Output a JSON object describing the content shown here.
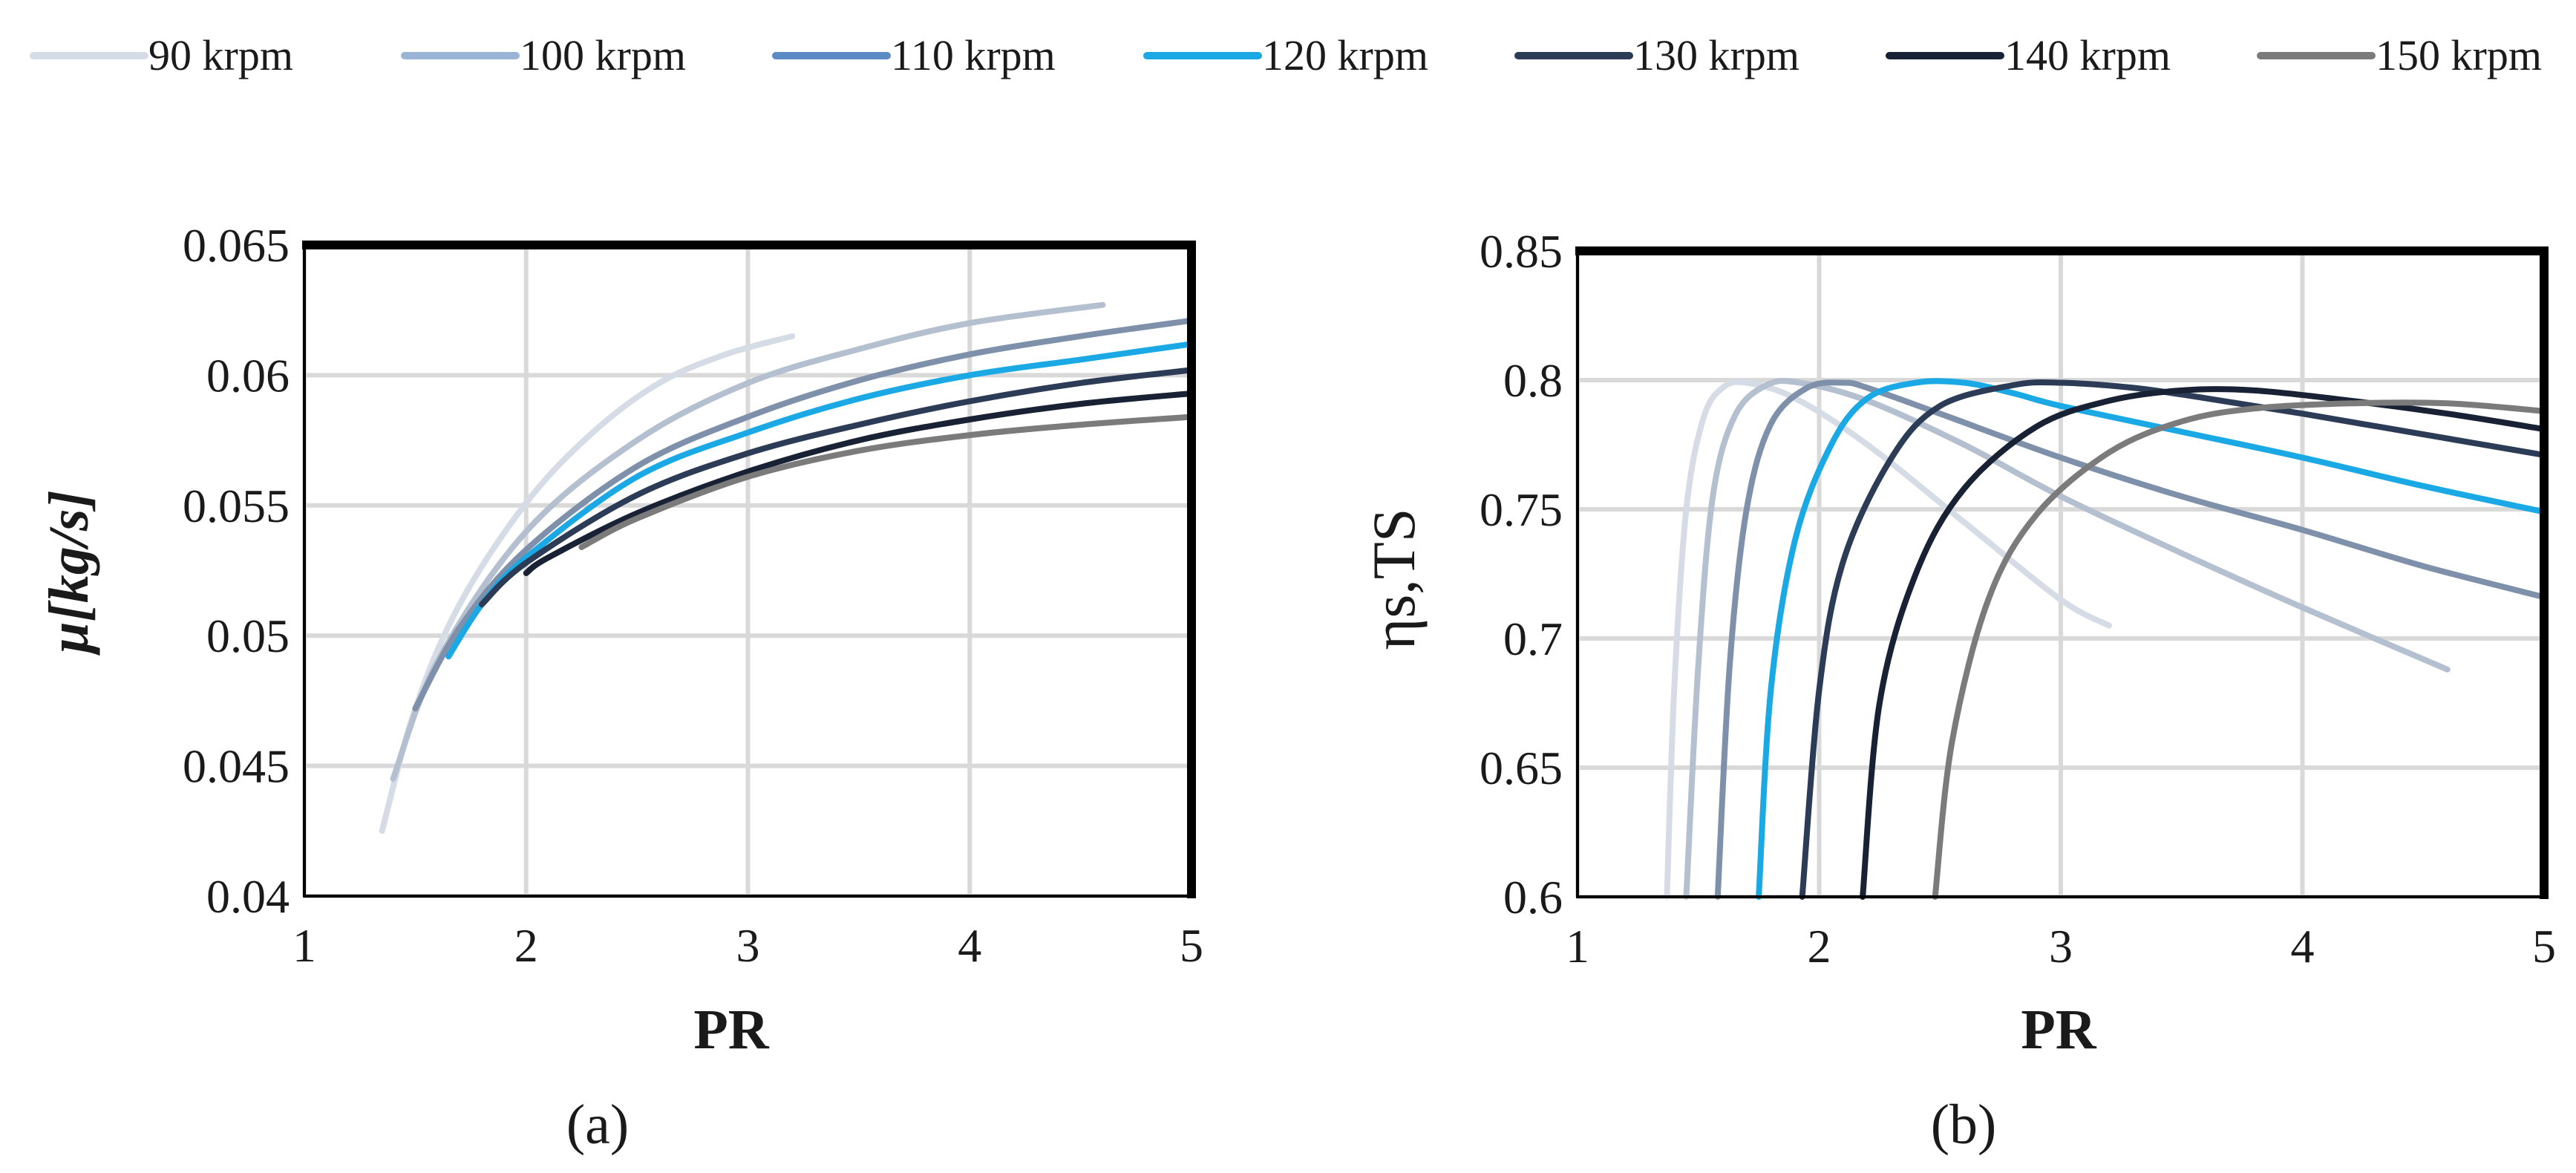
{
  "legend": [
    {
      "label": "90 krpm",
      "color": "#d5dce6"
    },
    {
      "label": "100 krpm",
      "color": "#9ab4d6"
    },
    {
      "label": "110 krpm",
      "color": "#5b8ac4"
    },
    {
      "label": "120 krpm",
      "color": "#1aa9e4"
    },
    {
      "label": "130 krpm",
      "color": "#2c3b56"
    },
    {
      "label": "140 krpm",
      "color": "#192235"
    },
    {
      "label": "150 krpm",
      "color": "#7b7b7b"
    }
  ],
  "captions": {
    "a": "(a)",
    "b": "(b)"
  },
  "chart_data": [
    {
      "id": "a",
      "type": "line",
      "title": "",
      "xlabel": "PR",
      "ylabel": "μ[kg/s]",
      "xlim": [
        1,
        5
      ],
      "ylim": [
        0.04,
        0.065
      ],
      "xticks": [
        1,
        2,
        3,
        4,
        5
      ],
      "xtick_labels": [
        "1",
        "2",
        "3",
        "4",
        "5"
      ],
      "yticks": [
        0.04,
        0.045,
        0.05,
        0.055,
        0.06,
        0.065
      ],
      "ytick_labels": [
        "0.04",
        "0.045",
        "0.05",
        "0.055",
        "0.06",
        "0.065"
      ],
      "grid": true,
      "series": [
        {
          "name": "90 krpm",
          "color": "#d5dce6",
          "x": [
            1.35,
            1.5,
            1.7,
            2.0,
            2.3,
            2.6,
            2.9,
            3.2
          ],
          "y": [
            0.0425,
            0.0472,
            0.0512,
            0.0551,
            0.0578,
            0.0597,
            0.0608,
            0.0615
          ]
        },
        {
          "name": "100 krpm",
          "color": "#b4c0d0",
          "x": [
            1.4,
            1.6,
            2.0,
            2.5,
            3.0,
            3.5,
            4.0,
            4.6
          ],
          "y": [
            0.0445,
            0.049,
            0.054,
            0.0575,
            0.0597,
            0.061,
            0.062,
            0.0627
          ]
        },
        {
          "name": "110 krpm",
          "color": "#7f91aa",
          "x": [
            1.5,
            1.7,
            2.0,
            2.5,
            3.0,
            3.5,
            4.0,
            4.5,
            5.0
          ],
          "y": [
            0.0472,
            0.0503,
            0.0533,
            0.0565,
            0.0584,
            0.0598,
            0.0608,
            0.0615,
            0.0621
          ]
        },
        {
          "name": "120 krpm",
          "color": "#1aa9e4",
          "x": [
            1.65,
            1.8,
            2.0,
            2.5,
            3.0,
            3.5,
            4.0,
            4.5,
            5.0
          ],
          "y": [
            0.0492,
            0.0512,
            0.053,
            0.0561,
            0.0578,
            0.0591,
            0.06,
            0.0606,
            0.0612
          ]
        },
        {
          "name": "130 krpm",
          "color": "#2c3b56",
          "x": [
            1.8,
            2.0,
            2.5,
            3.0,
            3.5,
            4.0,
            4.5,
            5.0
          ],
          "y": [
            0.0512,
            0.0528,
            0.0554,
            0.057,
            0.0581,
            0.059,
            0.0597,
            0.0602
          ]
        },
        {
          "name": "140 krpm",
          "color": "#192235",
          "x": [
            2.0,
            2.1,
            2.5,
            3.0,
            3.5,
            4.0,
            4.5,
            5.0
          ],
          "y": [
            0.0524,
            0.053,
            0.0547,
            0.0563,
            0.0575,
            0.0583,
            0.0589,
            0.0593
          ]
        },
        {
          "name": "150 krpm",
          "color": "#7b7b7b",
          "x": [
            2.25,
            2.5,
            3.0,
            3.5,
            4.0,
            4.5,
            5.0
          ],
          "y": [
            0.0534,
            0.0545,
            0.0561,
            0.0571,
            0.0577,
            0.0581,
            0.0584
          ]
        }
      ]
    },
    {
      "id": "b",
      "type": "line",
      "title": "",
      "xlabel": "PR",
      "ylabel": "ηs,TS",
      "xlim": [
        1,
        5
      ],
      "ylim": [
        0.6,
        0.85
      ],
      "xticks": [
        1,
        2,
        3,
        4,
        5
      ],
      "xtick_labels": [
        "1",
        "2",
        "3",
        "4",
        "5"
      ],
      "yticks": [
        0.6,
        0.65,
        0.7,
        0.75,
        0.8,
        0.85
      ],
      "ytick_labels": [
        "0.6",
        "0.65",
        "0.7",
        "0.75",
        "0.8",
        "0.85"
      ],
      "grid": true,
      "series": [
        {
          "name": "90 krpm",
          "color": "#d5dce6",
          "x": [
            1.37,
            1.4,
            1.45,
            1.52,
            1.6,
            1.7,
            1.9,
            2.2,
            2.6,
            3.0,
            3.2
          ],
          "y": [
            0.6,
            0.68,
            0.75,
            0.785,
            0.797,
            0.799,
            0.793,
            0.775,
            0.745,
            0.715,
            0.705
          ]
        },
        {
          "name": "100 krpm",
          "color": "#b4c0d0",
          "x": [
            1.45,
            1.5,
            1.56,
            1.65,
            1.78,
            1.92,
            2.2,
            2.6,
            3.0,
            3.5,
            4.0,
            4.6
          ],
          "y": [
            0.6,
            0.69,
            0.755,
            0.786,
            0.798,
            0.799,
            0.792,
            0.775,
            0.755,
            0.733,
            0.712,
            0.688
          ]
        },
        {
          "name": "110 krpm",
          "color": "#7f91aa",
          "x": [
            1.58,
            1.63,
            1.7,
            1.8,
            1.95,
            2.1,
            2.2,
            2.5,
            3.0,
            3.5,
            4.0,
            4.5,
            5.0
          ],
          "y": [
            0.6,
            0.69,
            0.75,
            0.783,
            0.797,
            0.799,
            0.797,
            0.787,
            0.77,
            0.755,
            0.742,
            0.728,
            0.716
          ]
        },
        {
          "name": "120 krpm",
          "color": "#1aa9e4",
          "x": [
            1.75,
            1.8,
            1.9,
            2.05,
            2.2,
            2.4,
            2.6,
            2.8,
            3.0,
            3.5,
            4.0,
            4.5,
            5.0
          ],
          "y": [
            0.6,
            0.68,
            0.738,
            0.775,
            0.793,
            0.799,
            0.799,
            0.795,
            0.79,
            0.78,
            0.77,
            0.759,
            0.749
          ]
        },
        {
          "name": "130 krpm",
          "color": "#2c3b56",
          "x": [
            1.93,
            2.0,
            2.1,
            2.3,
            2.5,
            2.8,
            3.0,
            3.3,
            3.6,
            4.0,
            4.5,
            5.0
          ],
          "y": [
            0.6,
            0.68,
            0.73,
            0.77,
            0.79,
            0.798,
            0.799,
            0.797,
            0.793,
            0.787,
            0.779,
            0.771
          ]
        },
        {
          "name": "140 krpm",
          "color": "#192235",
          "x": [
            2.18,
            2.25,
            2.4,
            2.6,
            2.9,
            3.2,
            3.5,
            3.8,
            4.2,
            4.6,
            5.0
          ],
          "y": [
            0.6,
            0.675,
            0.725,
            0.758,
            0.782,
            0.792,
            0.796,
            0.796,
            0.792,
            0.787,
            0.781
          ]
        },
        {
          "name": "150 krpm",
          "color": "#7b7b7b",
          "x": [
            2.48,
            2.55,
            2.7,
            2.9,
            3.2,
            3.5,
            3.8,
            4.2,
            4.6,
            5.0
          ],
          "y": [
            0.6,
            0.66,
            0.715,
            0.748,
            0.772,
            0.784,
            0.789,
            0.791,
            0.791,
            0.788
          ]
        }
      ]
    }
  ]
}
